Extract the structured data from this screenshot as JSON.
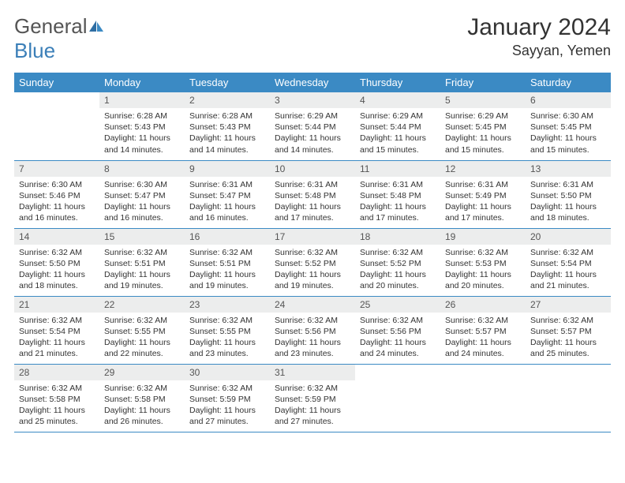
{
  "logo": {
    "general": "General",
    "blue": "Blue"
  },
  "title": "January 2024",
  "location": "Sayyan, Yemen",
  "colors": {
    "header_bg": "#3b8ac4",
    "header_fg": "#ffffff",
    "daynum_bg": "#eceded",
    "border": "#3b8ac4",
    "logo_blue": "#3b7fb8"
  },
  "weekdays": [
    "Sunday",
    "Monday",
    "Tuesday",
    "Wednesday",
    "Thursday",
    "Friday",
    "Saturday"
  ],
  "startOffset": 1,
  "daysInMonth": 31,
  "days": [
    {
      "n": 1,
      "sr": "6:28 AM",
      "ss": "5:43 PM",
      "dl": "11 hours and 14 minutes."
    },
    {
      "n": 2,
      "sr": "6:28 AM",
      "ss": "5:43 PM",
      "dl": "11 hours and 14 minutes."
    },
    {
      "n": 3,
      "sr": "6:29 AM",
      "ss": "5:44 PM",
      "dl": "11 hours and 14 minutes."
    },
    {
      "n": 4,
      "sr": "6:29 AM",
      "ss": "5:44 PM",
      "dl": "11 hours and 15 minutes."
    },
    {
      "n": 5,
      "sr": "6:29 AM",
      "ss": "5:45 PM",
      "dl": "11 hours and 15 minutes."
    },
    {
      "n": 6,
      "sr": "6:30 AM",
      "ss": "5:45 PM",
      "dl": "11 hours and 15 minutes."
    },
    {
      "n": 7,
      "sr": "6:30 AM",
      "ss": "5:46 PM",
      "dl": "11 hours and 16 minutes."
    },
    {
      "n": 8,
      "sr": "6:30 AM",
      "ss": "5:47 PM",
      "dl": "11 hours and 16 minutes."
    },
    {
      "n": 9,
      "sr": "6:31 AM",
      "ss": "5:47 PM",
      "dl": "11 hours and 16 minutes."
    },
    {
      "n": 10,
      "sr": "6:31 AM",
      "ss": "5:48 PM",
      "dl": "11 hours and 17 minutes."
    },
    {
      "n": 11,
      "sr": "6:31 AM",
      "ss": "5:48 PM",
      "dl": "11 hours and 17 minutes."
    },
    {
      "n": 12,
      "sr": "6:31 AM",
      "ss": "5:49 PM",
      "dl": "11 hours and 17 minutes."
    },
    {
      "n": 13,
      "sr": "6:31 AM",
      "ss": "5:50 PM",
      "dl": "11 hours and 18 minutes."
    },
    {
      "n": 14,
      "sr": "6:32 AM",
      "ss": "5:50 PM",
      "dl": "11 hours and 18 minutes."
    },
    {
      "n": 15,
      "sr": "6:32 AM",
      "ss": "5:51 PM",
      "dl": "11 hours and 19 minutes."
    },
    {
      "n": 16,
      "sr": "6:32 AM",
      "ss": "5:51 PM",
      "dl": "11 hours and 19 minutes."
    },
    {
      "n": 17,
      "sr": "6:32 AM",
      "ss": "5:52 PM",
      "dl": "11 hours and 19 minutes."
    },
    {
      "n": 18,
      "sr": "6:32 AM",
      "ss": "5:52 PM",
      "dl": "11 hours and 20 minutes."
    },
    {
      "n": 19,
      "sr": "6:32 AM",
      "ss": "5:53 PM",
      "dl": "11 hours and 20 minutes."
    },
    {
      "n": 20,
      "sr": "6:32 AM",
      "ss": "5:54 PM",
      "dl": "11 hours and 21 minutes."
    },
    {
      "n": 21,
      "sr": "6:32 AM",
      "ss": "5:54 PM",
      "dl": "11 hours and 21 minutes."
    },
    {
      "n": 22,
      "sr": "6:32 AM",
      "ss": "5:55 PM",
      "dl": "11 hours and 22 minutes."
    },
    {
      "n": 23,
      "sr": "6:32 AM",
      "ss": "5:55 PM",
      "dl": "11 hours and 23 minutes."
    },
    {
      "n": 24,
      "sr": "6:32 AM",
      "ss": "5:56 PM",
      "dl": "11 hours and 23 minutes."
    },
    {
      "n": 25,
      "sr": "6:32 AM",
      "ss": "5:56 PM",
      "dl": "11 hours and 24 minutes."
    },
    {
      "n": 26,
      "sr": "6:32 AM",
      "ss": "5:57 PM",
      "dl": "11 hours and 24 minutes."
    },
    {
      "n": 27,
      "sr": "6:32 AM",
      "ss": "5:57 PM",
      "dl": "11 hours and 25 minutes."
    },
    {
      "n": 28,
      "sr": "6:32 AM",
      "ss": "5:58 PM",
      "dl": "11 hours and 25 minutes."
    },
    {
      "n": 29,
      "sr": "6:32 AM",
      "ss": "5:58 PM",
      "dl": "11 hours and 26 minutes."
    },
    {
      "n": 30,
      "sr": "6:32 AM",
      "ss": "5:59 PM",
      "dl": "11 hours and 27 minutes."
    },
    {
      "n": 31,
      "sr": "6:32 AM",
      "ss": "5:59 PM",
      "dl": "11 hours and 27 minutes."
    }
  ],
  "labels": {
    "sunrise": "Sunrise:",
    "sunset": "Sunset:",
    "daylight": "Daylight:"
  }
}
